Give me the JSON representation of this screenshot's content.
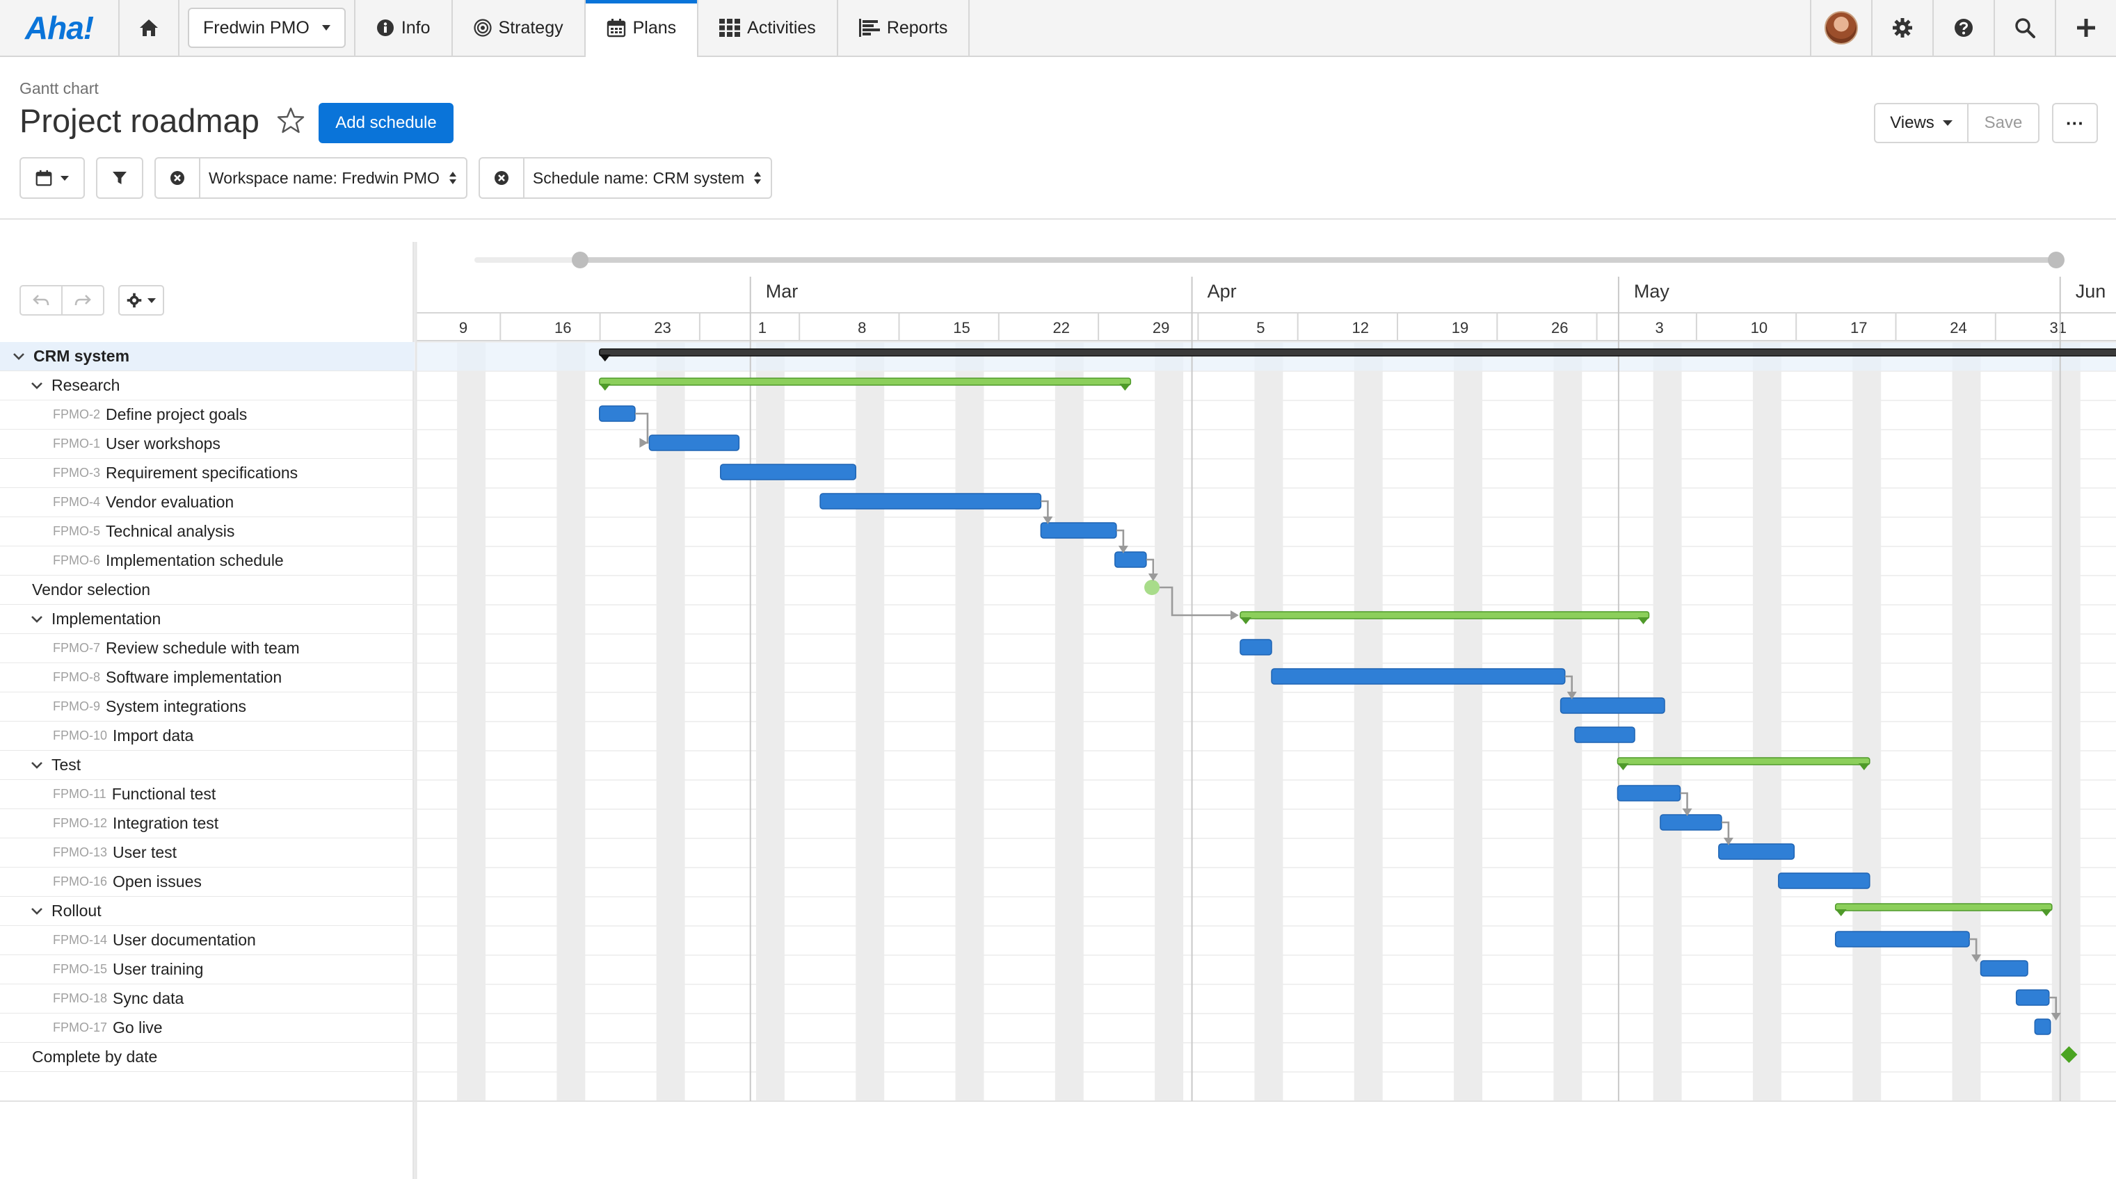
{
  "nav": {
    "logo": "Aha!",
    "workspace": "Fredwin PMO",
    "items": [
      {
        "label": "Info",
        "icon": "info-icon"
      },
      {
        "label": "Strategy",
        "icon": "target-icon"
      },
      {
        "label": "Plans",
        "icon": "calendar-icon",
        "active": true
      },
      {
        "label": "Activities",
        "icon": "grid-icon"
      },
      {
        "label": "Reports",
        "icon": "report-icon"
      }
    ]
  },
  "header": {
    "breadcrumb": "Gantt chart",
    "title": "Project roadmap",
    "add_schedule_label": "Add schedule",
    "views_label": "Views",
    "save_label": "Save",
    "more_label": "···"
  },
  "filters": [
    {
      "label": "Workspace name: Fredwin PMO"
    },
    {
      "label": "Schedule name: CRM system"
    }
  ],
  "timeline": {
    "months": [
      {
        "label": "Mar",
        "week_index": 3
      },
      {
        "label": "Apr",
        "week_index": 7.43
      },
      {
        "label": "May",
        "week_index": 11.71
      },
      {
        "label": "Jun",
        "week_index": 16.14
      }
    ],
    "weeks": [
      "9",
      "16",
      "23",
      "1",
      "8",
      "15",
      "22",
      "29",
      "5",
      "12",
      "19",
      "26",
      "3",
      "10",
      "17",
      "24",
      "31"
    ],
    "start_date": "2020-02-06"
  },
  "rows": [
    {
      "indent": 0,
      "collapse": true,
      "label": "CRM system",
      "selected": true
    },
    {
      "indent": 1,
      "collapse": true,
      "label": "Research"
    },
    {
      "indent": 2,
      "id": "FPMO-2",
      "label": "Define project goals"
    },
    {
      "indent": 2,
      "id": "FPMO-1",
      "label": "User workshops"
    },
    {
      "indent": 2,
      "id": "FPMO-3",
      "label": "Requirement specifications"
    },
    {
      "indent": 2,
      "id": "FPMO-4",
      "label": "Vendor evaluation"
    },
    {
      "indent": 2,
      "id": "FPMO-5",
      "label": "Technical analysis"
    },
    {
      "indent": 2,
      "id": "FPMO-6",
      "label": "Implementation schedule"
    },
    {
      "indent": 1,
      "collapse": false,
      "label": "Vendor selection"
    },
    {
      "indent": 1,
      "collapse": true,
      "label": "Implementation"
    },
    {
      "indent": 2,
      "id": "FPMO-7",
      "label": "Review schedule with team"
    },
    {
      "indent": 2,
      "id": "FPMO-8",
      "label": "Software implementation"
    },
    {
      "indent": 2,
      "id": "FPMO-9",
      "label": "System integrations"
    },
    {
      "indent": 2,
      "id": "FPMO-10",
      "label": "Import data"
    },
    {
      "indent": 1,
      "collapse": true,
      "label": "Test"
    },
    {
      "indent": 2,
      "id": "FPMO-11",
      "label": "Functional test"
    },
    {
      "indent": 2,
      "id": "FPMO-12",
      "label": "Integration test"
    },
    {
      "indent": 2,
      "id": "FPMO-13",
      "label": "User test"
    },
    {
      "indent": 2,
      "id": "FPMO-16",
      "label": "Open issues"
    },
    {
      "indent": 1,
      "collapse": true,
      "label": "Rollout"
    },
    {
      "indent": 2,
      "id": "FPMO-14",
      "label": "User documentation"
    },
    {
      "indent": 2,
      "id": "FPMO-15",
      "label": "User training"
    },
    {
      "indent": 2,
      "id": "FPMO-18",
      "label": "Sync data"
    },
    {
      "indent": 2,
      "id": "FPMO-17",
      "label": "Go live"
    },
    {
      "indent": 1,
      "collapse": false,
      "label": "Complete by date"
    }
  ],
  "chart_data": {
    "type": "gantt",
    "unit": "days from start_date",
    "bars": [
      {
        "row": 0,
        "kind": "summary",
        "start": 8,
        "end": 115.5
      },
      {
        "row": 1,
        "kind": "group",
        "start": 8,
        "end": 45.3
      },
      {
        "row": 2,
        "kind": "task",
        "start": 8,
        "end": 10.5
      },
      {
        "row": 3,
        "kind": "task",
        "start": 11.5,
        "end": 17.8
      },
      {
        "row": 4,
        "kind": "task",
        "start": 16.5,
        "end": 26
      },
      {
        "row": 5,
        "kind": "task",
        "start": 23.5,
        "end": 39
      },
      {
        "row": 6,
        "kind": "task",
        "start": 39,
        "end": 44.3
      },
      {
        "row": 7,
        "kind": "task",
        "start": 44.2,
        "end": 46.4
      },
      {
        "row": 8,
        "kind": "milestone-done",
        "start": 46.8
      },
      {
        "row": 9,
        "kind": "group",
        "start": 53,
        "end": 81.7
      },
      {
        "row": 10,
        "kind": "task",
        "start": 53,
        "end": 55.2
      },
      {
        "row": 11,
        "kind": "task",
        "start": 55.2,
        "end": 75.8
      },
      {
        "row": 12,
        "kind": "task",
        "start": 75.5,
        "end": 82.8
      },
      {
        "row": 13,
        "kind": "task",
        "start": 76.5,
        "end": 80.7
      },
      {
        "row": 14,
        "kind": "group",
        "start": 79.5,
        "end": 97.2
      },
      {
        "row": 15,
        "kind": "task",
        "start": 79.5,
        "end": 83.9
      },
      {
        "row": 16,
        "kind": "task",
        "start": 82.5,
        "end": 86.8
      },
      {
        "row": 17,
        "kind": "task",
        "start": 86.6,
        "end": 91.9
      },
      {
        "row": 18,
        "kind": "task",
        "start": 90.8,
        "end": 97.2
      },
      {
        "row": 19,
        "kind": "group",
        "start": 94.8,
        "end": 110
      },
      {
        "row": 20,
        "kind": "task",
        "start": 94.8,
        "end": 104.2
      },
      {
        "row": 21,
        "kind": "task",
        "start": 105,
        "end": 108.3
      },
      {
        "row": 22,
        "kind": "task",
        "start": 107.5,
        "end": 109.8
      },
      {
        "row": 23,
        "kind": "task",
        "start": 108.8,
        "end": 109.9
      },
      {
        "row": 24,
        "kind": "milestone",
        "start": 111.2
      }
    ],
    "dependencies": [
      [
        2,
        3
      ],
      [
        5,
        6
      ],
      [
        6,
        7
      ],
      [
        7,
        8
      ],
      [
        8,
        9
      ],
      [
        11,
        12
      ],
      [
        15,
        16
      ],
      [
        16,
        17
      ],
      [
        20,
        21
      ],
      [
        22,
        23
      ]
    ]
  },
  "colors": {
    "accent": "#0a74d9",
    "task_bar": "#2f7fd6",
    "group_bar": "#8ccf5b",
    "summary_bar": "#3a3a3a",
    "milestone": "#4aa421"
  }
}
